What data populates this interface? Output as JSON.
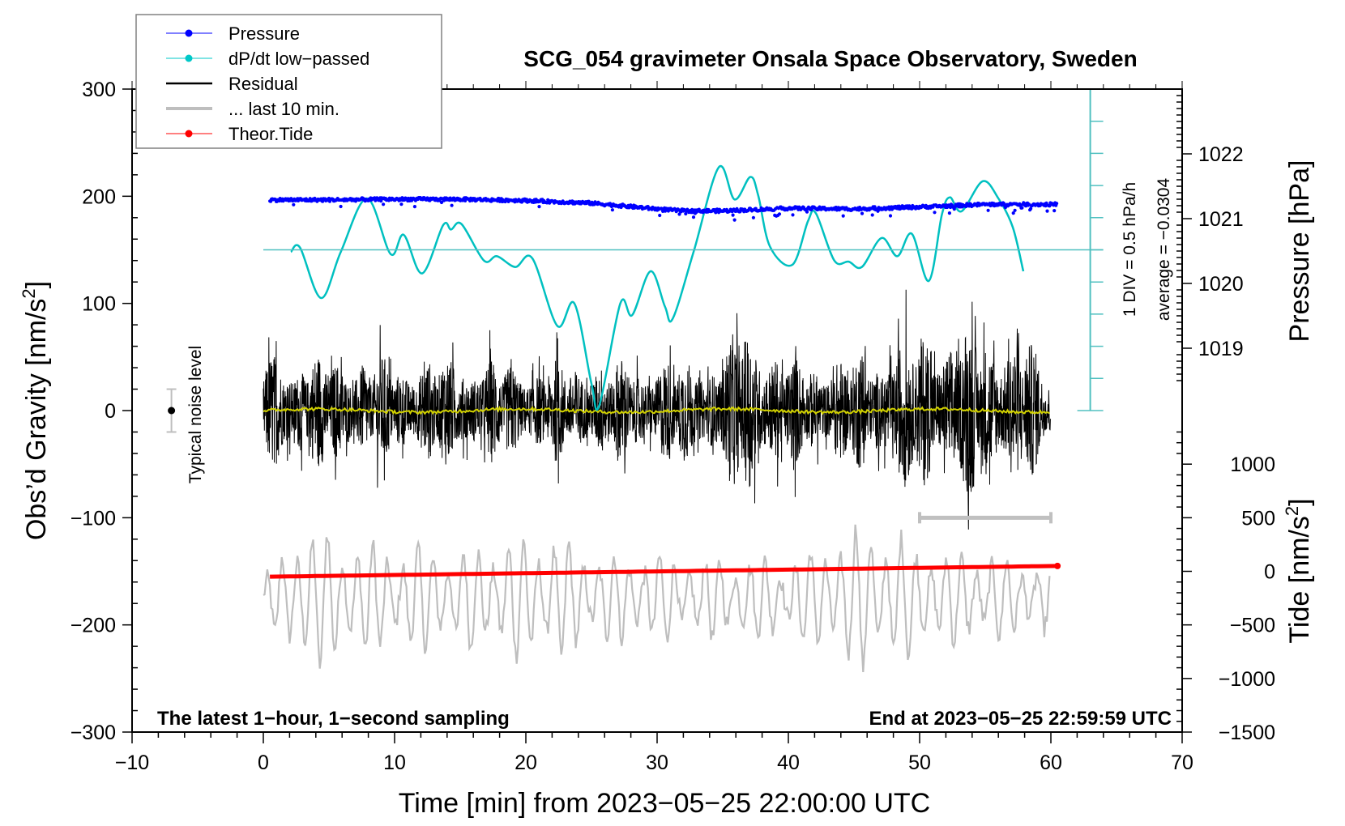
{
  "chart_data": {
    "type": "line",
    "title": "SCG_054 gravimeter Onsala Space Observatory, Sweden",
    "xlabel": "Time [min] from 2023−05−25 22:00:00 UTC",
    "ylabel_left": "Obs’d Gravity [nm/s²]",
    "ylabel_left_main": "Obs’d Gravity [nm/s",
    "ylabel_right_pressure": "Pressure [hPa]",
    "ylabel_right_tide_main": "Tide [nm/s",
    "ylabel_right_tide": "Tide [nm/s²]",
    "superscript": "2",
    "ylabel_tail": "]",
    "xlim": [
      -10,
      70
    ],
    "ylim_left": [
      -300,
      300
    ],
    "pressure_axis_range": [
      1018.0,
      1023.0
    ],
    "tide_axis_range": [
      -1500,
      1500
    ],
    "grid": false,
    "legend_placement": "top-left",
    "x_ticks": [
      -10,
      0,
      10,
      20,
      30,
      40,
      50,
      60,
      70
    ],
    "x_tick_labels": [
      "−10",
      "0",
      "10",
      "20",
      "30",
      "40",
      "50",
      "60",
      "70"
    ],
    "y_left_ticks": [
      300,
      200,
      100,
      0,
      -100,
      -200,
      -300
    ],
    "y_left_tick_labels": [
      "300",
      "200",
      "100",
      "0",
      "−100",
      "−200",
      "−300"
    ],
    "pressure_ticks": [
      1022,
      1021,
      1020,
      1019
    ],
    "pressure_tick_labels": [
      "1022",
      "1021",
      "1020",
      "1019"
    ],
    "tide_ticks": [
      1000,
      500,
      0,
      -500,
      -1000,
      -1500
    ],
    "tide_tick_labels": [
      "1000",
      "500",
      "0",
      "−500",
      "−1000",
      "−1500"
    ],
    "legend": [
      {
        "label": "Pressure",
        "color": "#0000ff",
        "style": "line-dot"
      },
      {
        "label": "dP/dt low−passed",
        "color": "#00c8c8",
        "style": "line-dot"
      },
      {
        "label": "Residual",
        "color": "#000000",
        "style": "line"
      },
      {
        "label": "... last 10 min.",
        "color": "#bebebe",
        "style": "thick-line"
      },
      {
        "label": "Theor.Tide",
        "color": "#ff0000",
        "style": "line-dot"
      }
    ],
    "series": [
      {
        "name": "Pressure",
        "unit": "hPa",
        "axis": "pressure",
        "color": "#0000ff",
        "x": [
          0.5,
          5,
          10,
          15,
          20,
          25,
          30,
          32,
          35,
          40,
          45,
          50,
          55,
          60.5
        ],
        "values": [
          1021.29,
          1021.29,
          1021.3,
          1021.3,
          1021.28,
          1021.24,
          1021.15,
          1021.12,
          1021.12,
          1021.16,
          1021.15,
          1021.18,
          1021.22,
          1021.22
        ]
      },
      {
        "name": "dP/dt low-passed",
        "unit": "left-axis plot units (1 DIV = 0.5 hPa/h, 30 units per DIV)",
        "axis": "left",
        "color": "#00c8c8",
        "x": [
          2.1,
          2.8,
          4.4,
          5.9,
          7.9,
          9.7,
          10.7,
          12.1,
          13.7,
          14.3,
          15.1,
          16.8,
          17.8,
          19.2,
          20.5,
          22.4,
          23.7,
          25.0,
          25.6,
          27.2,
          28.1,
          29.5,
          30.6,
          31.2,
          32.8,
          34.7,
          35.9,
          37.1,
          37.7,
          38.6,
          40.3,
          41.5,
          42.1,
          43.5,
          44.6,
          45.6,
          47.1,
          48.3,
          49.4,
          50.7,
          51.7,
          52.3,
          53.2,
          54.8,
          56.0,
          57.1,
          57.9
        ],
        "values": [
          148,
          152,
          105,
          148,
          198,
          146,
          164,
          128,
          173,
          169,
          174,
          140,
          144,
          134,
          142,
          79,
          100,
          25,
          5,
          100,
          89,
          130,
          97,
          86,
          149,
          227,
          197,
          218,
          201,
          153,
          136,
          177,
          184,
          140,
          139,
          134,
          161,
          144,
          165,
          121,
          183,
          199,
          186,
          214,
          198,
          171,
          130
        ]
      },
      {
        "name": "Residual",
        "unit": "nm/s²",
        "axis": "left",
        "color": "#000000",
        "x_range": [
          0,
          60
        ],
        "amplitude_envelope": {
          "x": [
            0,
            5,
            10,
            15,
            20,
            25,
            30,
            35,
            36.5,
            40,
            45,
            50,
            53.5,
            58,
            60
          ],
          "values": [
            70,
            65,
            60,
            65,
            55,
            60,
            60,
            65,
            110,
            60,
            65,
            95,
            100,
            90,
            40
          ]
        },
        "mean_line_color": "#d2d200",
        "mean_value": 0
      },
      {
        "name": "... last 10 min.",
        "unit": "left-axis plot units (offset display)",
        "axis": "left",
        "color": "#bebebe",
        "x_range": [
          0,
          60
        ],
        "center_value": -175,
        "amplitude_envelope": {
          "x": [
            0,
            3,
            8,
            15,
            22,
            25,
            30,
            40,
            46,
            47.5,
            50,
            55,
            60
          ],
          "values": [
            15,
            70,
            50,
            45,
            60,
            40,
            40,
            35,
            70,
            70,
            45,
            40,
            30
          ]
        }
      },
      {
        "name": "Theor.Tide",
        "unit": "nm/s²",
        "axis": "tide",
        "color": "#ff0000",
        "x": [
          0.5,
          60.5
        ],
        "values": [
          -50,
          50
        ]
      }
    ],
    "annotations": {
      "noise_level": {
        "label": "Typical noise level",
        "x": -7,
        "center": 0,
        "low": -20,
        "high": 20
      },
      "last10_bracket": {
        "x_start": 50,
        "x_end": 60,
        "y": -100
      },
      "dpdt_scale": {
        "label_div": "1 DIV = 0.5 hPa/h",
        "label_avg": "average = −0.0304",
        "x": 63,
        "y_bottom": 0,
        "y_top": 300,
        "zero_line": 150,
        "divisions": 10
      },
      "bottom_left": "The latest 1−hour, 1−second sampling",
      "bottom_right": "End at 2023−05−25 22:59:59 UTC"
    }
  }
}
